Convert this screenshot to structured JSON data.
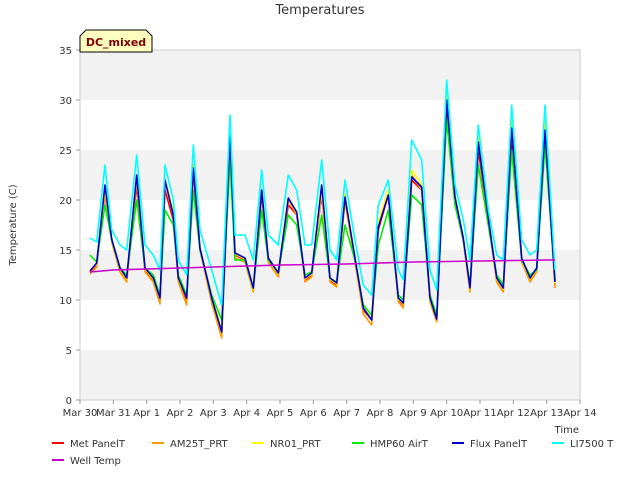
{
  "chart_data": {
    "type": "line",
    "title": "Temperatures",
    "xlabel": "Time",
    "ylabel": "Temperature (C)",
    "badge": "DC_mixed",
    "ylim": [
      0,
      35
    ],
    "xlim": [
      0,
      15
    ],
    "y_ticks": [
      0,
      5,
      10,
      15,
      20,
      25,
      30,
      35
    ],
    "x_ticks": [
      {
        "v": 0,
        "label": "Mar 30"
      },
      {
        "v": 1,
        "label": "Mar 31"
      },
      {
        "v": 2,
        "label": "Apr 1"
      },
      {
        "v": 3,
        "label": "Apr 2"
      },
      {
        "v": 4,
        "label": "Apr 3"
      },
      {
        "v": 5,
        "label": "Apr 4"
      },
      {
        "v": 6,
        "label": "Apr 5"
      },
      {
        "v": 7,
        "label": "Apr 6"
      },
      {
        "v": 8,
        "label": "Apr 7"
      },
      {
        "v": 9,
        "label": "Apr 8"
      },
      {
        "v": 10,
        "label": "Apr 9"
      },
      {
        "v": 11,
        "label": "Apr 10"
      },
      {
        "v": 12,
        "label": "Apr 11"
      },
      {
        "v": 13,
        "label": "Apr 12"
      },
      {
        "v": 14,
        "label": "Apr 13"
      },
      {
        "v": 15,
        "label": "Apr 14"
      }
    ],
    "grid": "horizontal bands",
    "legend_position": "bottom",
    "x_note": "x values are days after Mar 30 00:00",
    "series": [
      {
        "name": "Met PanelT",
        "color": "#ff0000",
        "x": [
          0.3,
          0.5,
          0.75,
          0.95,
          1.2,
          1.4,
          1.7,
          1.95,
          2.2,
          2.4,
          2.55,
          2.8,
          2.95,
          3.2,
          3.4,
          3.6,
          3.95,
          4.25,
          4.5,
          4.65,
          4.95,
          5.2,
          5.45,
          5.65,
          5.95,
          6.25,
          6.5,
          6.75,
          6.95,
          7.25,
          7.5,
          7.7,
          7.95,
          8.25,
          8.5,
          8.75,
          8.95,
          9.25,
          9.55,
          9.7,
          9.95,
          10.25,
          10.5,
          10.7,
          11.0,
          11.25,
          11.5,
          11.7,
          11.95,
          12.25,
          12.5,
          12.7,
          12.95,
          13.25,
          13.5,
          13.7,
          13.95,
          14.25
        ],
        "y": [
          12.8,
          13.5,
          20.5,
          16,
          13,
          12,
          21.5,
          13,
          12,
          10,
          21,
          18,
          12,
          10,
          23,
          15,
          10,
          7,
          25,
          14.5,
          14,
          11,
          20.5,
          14,
          12.5,
          19.5,
          18.5,
          12,
          12.5,
          20.5,
          12,
          11.5,
          20,
          14,
          9,
          8,
          17,
          20.5,
          10,
          9.5,
          22,
          21,
          10,
          8,
          29.5,
          20,
          16,
          11,
          25,
          18,
          12,
          11,
          26,
          14,
          12,
          13,
          26.5,
          11.5
        ]
      },
      {
        "name": "AM25T_PRT",
        "color": "#ff9900",
        "x": [
          0.3,
          0.5,
          0.75,
          0.95,
          1.2,
          1.4,
          1.7,
          1.95,
          2.2,
          2.4,
          2.55,
          2.8,
          2.95,
          3.2,
          3.4,
          3.6,
          3.95,
          4.25,
          4.5,
          4.65,
          4.95,
          5.2,
          5.45,
          5.65,
          5.95,
          6.25,
          6.5,
          6.75,
          6.95,
          7.25,
          7.5,
          7.7,
          7.95,
          8.25,
          8.5,
          8.75,
          8.95,
          9.25,
          9.55,
          9.7,
          9.95,
          10.25,
          10.5,
          10.7,
          11.0,
          11.25,
          11.5,
          11.7,
          11.95,
          12.25,
          12.5,
          12.7,
          12.95,
          13.25,
          13.5,
          13.7,
          13.95,
          14.25
        ],
        "y": [
          12.6,
          13.3,
          20.8,
          15.8,
          12.8,
          11.8,
          22,
          12.8,
          11.8,
          9.6,
          22,
          18.5,
          11.8,
          9.5,
          23.5,
          15,
          9.7,
          6.2,
          26,
          14.2,
          13.8,
          10.8,
          21,
          13.8,
          12.3,
          20,
          18.5,
          11.8,
          12.3,
          20.8,
          11.8,
          11.3,
          19.8,
          13.8,
          8.6,
          7.5,
          17.5,
          20.8,
          9.8,
          9.2,
          22.5,
          21,
          9.8,
          7.8,
          30.5,
          20,
          15.8,
          10.8,
          25.8,
          17.8,
          11.8,
          10.8,
          27.5,
          13.8,
          11.8,
          12.8,
          27.5,
          11.2
        ]
      },
      {
        "name": "NR01_PRT",
        "color": "#ffff00",
        "x": [
          0.3,
          0.5,
          0.75,
          0.95,
          1.2,
          1.4,
          1.7,
          1.95,
          2.2,
          2.4,
          2.55,
          2.8,
          2.95,
          3.2,
          3.4,
          3.6,
          3.95,
          4.25,
          4.5,
          4.65,
          4.95,
          5.2,
          5.45,
          5.65,
          5.95,
          6.25,
          6.5,
          6.75,
          6.95,
          7.25,
          7.5,
          7.7,
          7.95,
          8.25,
          8.5,
          8.75,
          8.95,
          9.25,
          9.55,
          9.7,
          9.95,
          10.25,
          10.5,
          10.7,
          11.0,
          11.25,
          11.5,
          11.7,
          11.95,
          12.25,
          12.5,
          12.7,
          12.95,
          13.25,
          13.5,
          13.7,
          13.95,
          14.25
        ],
        "y": [
          12.9,
          13.6,
          21,
          16.2,
          13.1,
          12.1,
          22.5,
          13.1,
          12.1,
          10.2,
          22,
          19,
          12.1,
          10.2,
          23.5,
          15.2,
          10.2,
          7.2,
          27.5,
          14.6,
          14.1,
          11.1,
          21,
          14.1,
          12.6,
          20.2,
          18.8,
          12.1,
          12.6,
          21,
          12.1,
          11.6,
          20.5,
          14.1,
          9.2,
          8.2,
          17.8,
          21,
          10.1,
          9.6,
          23,
          21.5,
          10.1,
          8.2,
          31,
          20.5,
          16.1,
          11.1,
          27,
          18.3,
          12.1,
          11.1,
          28,
          14.1,
          12.1,
          13.1,
          28,
          11.7
        ]
      },
      {
        "name": "HMP60 AirT",
        "color": "#00ee00",
        "x": [
          0.3,
          0.5,
          0.75,
          0.95,
          1.2,
          1.4,
          1.7,
          1.95,
          2.2,
          2.4,
          2.55,
          2.8,
          2.95,
          3.2,
          3.4,
          3.6,
          3.95,
          4.25,
          4.5,
          4.65,
          4.95,
          5.2,
          5.45,
          5.65,
          5.95,
          6.25,
          6.5,
          6.75,
          6.95,
          7.25,
          7.5,
          7.7,
          7.95,
          8.25,
          8.5,
          8.75,
          8.95,
          9.25,
          9.55,
          9.7,
          9.95,
          10.25,
          10.5,
          10.7,
          11.0,
          11.25,
          11.5,
          11.7,
          11.95,
          12.25,
          12.5,
          12.7,
          12.95,
          13.25,
          13.5,
          13.7,
          13.95,
          14.25
        ],
        "y": [
          14.5,
          13.8,
          19.5,
          16,
          13.2,
          12.5,
          20,
          13.2,
          12.5,
          10.5,
          19,
          17.5,
          12.5,
          10.5,
          21,
          15,
          10.5,
          8,
          24,
          14,
          14,
          11.2,
          19,
          14,
          12.8,
          18.5,
          17.5,
          12.5,
          12.8,
          18.5,
          12.2,
          11.8,
          17.5,
          14,
          9.5,
          8.5,
          15.5,
          19,
          10.5,
          10,
          20.5,
          19.5,
          10.5,
          8.5,
          28,
          19.5,
          16,
          11.5,
          23.5,
          17.5,
          12.5,
          11.5,
          25,
          14,
          12.5,
          13,
          25.5,
          12
        ]
      },
      {
        "name": "Flux PanelT",
        "color": "#0000cc",
        "x": [
          0.3,
          0.5,
          0.75,
          0.95,
          1.2,
          1.4,
          1.7,
          1.95,
          2.2,
          2.4,
          2.55,
          2.8,
          2.95,
          3.2,
          3.4,
          3.6,
          3.95,
          4.25,
          4.5,
          4.65,
          4.95,
          5.2,
          5.45,
          5.65,
          5.95,
          6.25,
          6.5,
          6.75,
          6.95,
          7.25,
          7.5,
          7.7,
          7.95,
          8.25,
          8.5,
          8.75,
          8.95,
          9.25,
          9.55,
          9.7,
          9.95,
          10.25,
          10.5,
          10.7,
          11.0,
          11.25,
          11.5,
          11.7,
          11.95,
          12.25,
          12.5,
          12.7,
          12.95,
          13.25,
          13.5,
          13.7,
          13.95,
          14.25
        ],
        "y": [
          12.9,
          13.7,
          21.5,
          16.1,
          13.2,
          12.2,
          22.5,
          13.2,
          12.2,
          10.2,
          22,
          18.5,
          12.2,
          10.2,
          23.2,
          15.2,
          10.2,
          6.8,
          26.5,
          14.7,
          14.2,
          11.2,
          21,
          14.2,
          12.7,
          20.2,
          18.8,
          12.2,
          12.7,
          21.5,
          12.2,
          11.7,
          20.3,
          14.2,
          9.2,
          8,
          17.3,
          20.5,
          10.2,
          9.7,
          22.3,
          21.3,
          10.2,
          8.1,
          30,
          20.3,
          16.2,
          11.2,
          25.8,
          18.2,
          12.2,
          11.2,
          27.2,
          14.2,
          12.2,
          13.2,
          27,
          11.8
        ]
      },
      {
        "name": "LI7500 T",
        "color": "#00ffff",
        "x": [
          0.3,
          0.5,
          0.75,
          0.95,
          1.2,
          1.4,
          1.7,
          1.95,
          2.2,
          2.4,
          2.55,
          2.8,
          2.95,
          3.2,
          3.4,
          3.6,
          3.95,
          4.25,
          4.5,
          4.65,
          4.95,
          5.2,
          5.45,
          5.65,
          5.95,
          6.25,
          6.5,
          6.75,
          6.95,
          7.25,
          7.5,
          7.7,
          7.95,
          8.25,
          8.5,
          8.75,
          8.95,
          9.25,
          9.55,
          9.7,
          9.95,
          10.25,
          10.5,
          10.7,
          11.0,
          11.25,
          11.5,
          11.7,
          11.95,
          12.25,
          12.5,
          12.7,
          12.95,
          13.25,
          13.5,
          13.7,
          13.95,
          14.25
        ],
        "y": [
          16.2,
          15.8,
          23.5,
          17,
          15.5,
          15,
          24.5,
          15.5,
          14.5,
          13,
          23.5,
          20,
          14,
          12.5,
          25.5,
          17,
          13,
          9.5,
          28.5,
          16.5,
          16.5,
          14,
          23,
          16.5,
          15.5,
          22.5,
          21,
          15.5,
          15.5,
          24,
          15,
          14,
          22,
          16,
          11.5,
          10.5,
          19.5,
          22,
          13,
          12,
          26,
          24,
          13,
          11,
          32,
          21.5,
          18,
          14,
          27.5,
          19,
          14.5,
          14,
          29.5,
          16,
          14.5,
          15,
          29.5,
          13
        ]
      },
      {
        "name": "Well Temp",
        "color": "#cc00cc",
        "x": [
          0.3,
          1,
          2,
          3,
          4,
          5,
          6,
          7,
          8,
          9,
          10,
          11,
          12,
          13,
          14,
          14.25
        ],
        "y": [
          12.8,
          13,
          13.1,
          13.2,
          13.3,
          13.4,
          13.5,
          13.55,
          13.6,
          13.7,
          13.8,
          13.85,
          13.9,
          13.95,
          14,
          14
        ]
      }
    ]
  }
}
